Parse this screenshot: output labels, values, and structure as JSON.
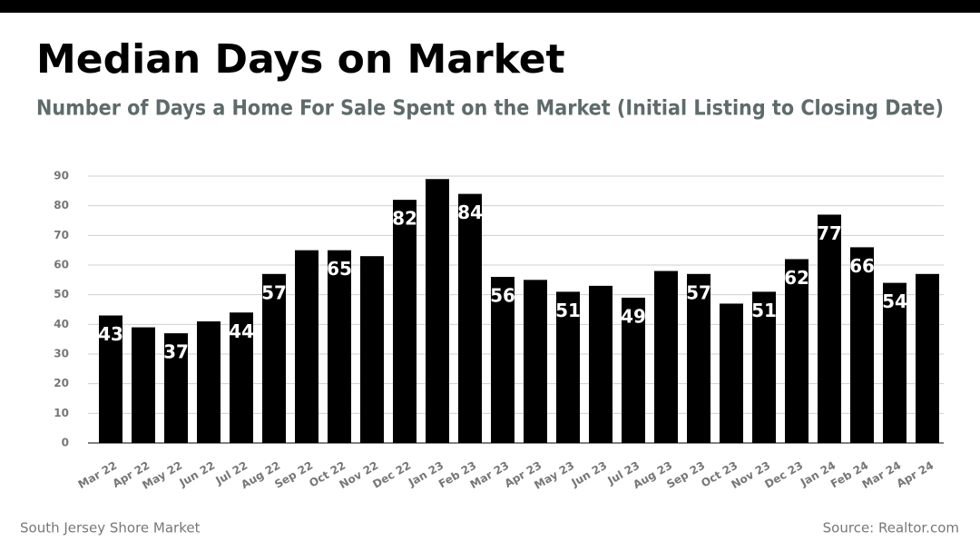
{
  "chart_data": {
    "type": "bar",
    "title": "Median Days on Market",
    "subtitle": "Number of Days a Home For Sale Spent on the Market (Initial Listing to Closing Date)",
    "footer_left": "South Jersey Shore Market",
    "footer_right": "Source: Realtor.com",
    "categories": [
      "Mar 22",
      "Apr 22",
      "May 22",
      "Jun 22",
      "Jul 22",
      "Aug 22",
      "Sep 22",
      "Oct 22",
      "Nov 22",
      "Dec 22",
      "Jan 23",
      "Feb 23",
      "Mar 23",
      "Apr 23",
      "May 23",
      "Jun 23",
      "Jul 23",
      "Aug 23",
      "Sep 23",
      "Oct 23",
      "Nov 23",
      "Dec 23",
      "Jan 24",
      "Feb 24",
      "Mar 24",
      "Apr 24"
    ],
    "values": [
      43,
      39,
      37,
      41,
      44,
      57,
      65,
      65,
      63,
      82,
      89,
      84,
      56,
      55,
      51,
      53,
      49,
      58,
      57,
      47,
      51,
      62,
      77,
      66,
      54,
      57
    ],
    "value_labels": [
      "43",
      null,
      "37",
      null,
      "44",
      "57",
      null,
      "65",
      null,
      "82",
      null,
      "84",
      "56",
      null,
      "51",
      null,
      "49",
      null,
      "57",
      null,
      "51",
      "62",
      "77",
      "66",
      "54",
      null
    ],
    "color": "#000000",
    "ylim": [
      0,
      90
    ],
    "yticks": [
      0,
      10,
      20,
      30,
      40,
      50,
      60,
      70,
      80,
      90
    ],
    "grid": true
  }
}
